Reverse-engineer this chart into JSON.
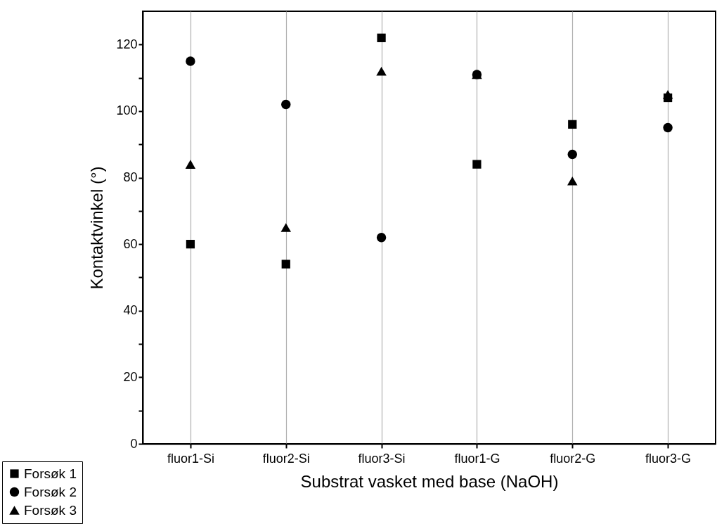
{
  "chart_data": {
    "type": "scatter",
    "xlabel": "Substrat vasket med base (NaOH)",
    "ylabel": "Kontaktvinkel (°)",
    "categories": [
      "fluor1-Si",
      "fluor2-Si",
      "fluor3-Si",
      "fluor1-G",
      "fluor2-G",
      "fluor3-G"
    ],
    "ylim": [
      0,
      130
    ],
    "yticks": [
      0,
      {
        "value": 10,
        "label": null
      },
      20,
      {
        "value": 30,
        "label": null
      },
      40,
      {
        "value": 50,
        "label": null
      },
      60,
      {
        "value": 70,
        "label": null
      },
      80,
      {
        "value": 90,
        "label": null
      },
      100,
      {
        "value": 110,
        "label": null
      },
      120
    ],
    "grid": "x",
    "legend": "bottom left",
    "series": [
      {
        "name": "Forsøk 1",
        "color": "#000000",
        "marker": "square",
        "values": [
          60,
          54,
          122,
          84,
          96,
          104
        ]
      },
      {
        "name": "Forsøk 2",
        "color": "#000000",
        "marker": "circle",
        "values": [
          115,
          102,
          62,
          111,
          87,
          95
        ]
      },
      {
        "name": "Forsøk 3",
        "color": "#000000",
        "marker": "triangle",
        "values": [
          84,
          65,
          112,
          111,
          79,
          105
        ]
      }
    ]
  }
}
